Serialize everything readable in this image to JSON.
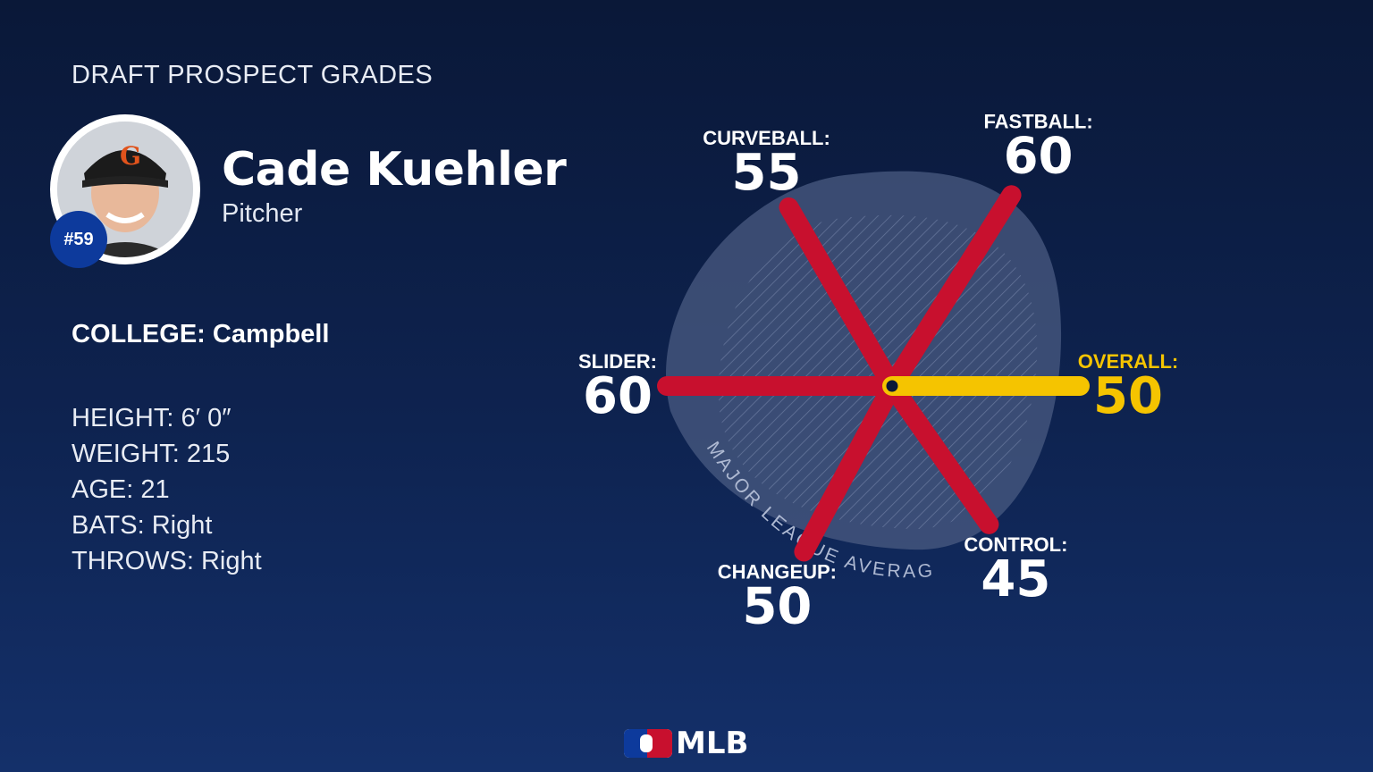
{
  "header": {
    "title": "DRAFT PROSPECT GRADES"
  },
  "player": {
    "name": "Cade Kuehler",
    "position": "Pitcher",
    "number": "#59",
    "college": "COLLEGE: Campbell",
    "stats": [
      "HEIGHT: 6′ 0″",
      "WEIGHT: 215",
      "AGE: 21",
      "BATS: Right",
      "THROWS: Right"
    ]
  },
  "chart_data": {
    "type": "radial",
    "band_label": "MAJOR LEAGUE AVERAGE",
    "axes": [
      {
        "label": "FASTBALL:",
        "value": 60,
        "highlight": false
      },
      {
        "label": "CURVEBALL:",
        "value": 55,
        "highlight": false
      },
      {
        "label": "SLIDER:",
        "value": 60,
        "highlight": false
      },
      {
        "label": "CHANGEUP:",
        "value": 50,
        "highlight": false
      },
      {
        "label": "CONTROL:",
        "value": 45,
        "highlight": false
      },
      {
        "label": "OVERALL:",
        "value": 50,
        "highlight": true
      }
    ],
    "colors": {
      "spoke": "#c8102e",
      "highlight": "#f5c400",
      "band": "#4a5b82",
      "background": "#0e2350"
    }
  },
  "footer": {
    "logo_text": "MLB"
  }
}
